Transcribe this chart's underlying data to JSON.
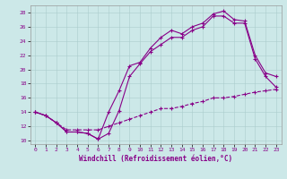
{
  "xlabel": "Windchill (Refroidissement éolien,°C)",
  "background_color": "#cce8e8",
  "line_color": "#880088",
  "xlim": [
    -0.5,
    23.5
  ],
  "ylim": [
    9.5,
    29.0
  ],
  "yticks": [
    10,
    12,
    14,
    16,
    18,
    20,
    22,
    24,
    26,
    28
  ],
  "xticks": [
    0,
    1,
    2,
    3,
    4,
    5,
    6,
    7,
    8,
    9,
    10,
    11,
    12,
    13,
    14,
    15,
    16,
    17,
    18,
    19,
    20,
    21,
    22,
    23
  ],
  "curve1_x": [
    0,
    1,
    2,
    3,
    4,
    5,
    6,
    7,
    8,
    9,
    10,
    11,
    12,
    13,
    14,
    15,
    16,
    17,
    18,
    19,
    20,
    21,
    22,
    23
  ],
  "curve1_y": [
    14.0,
    13.5,
    12.5,
    11.2,
    11.2,
    11.0,
    10.2,
    14.0,
    17.0,
    20.5,
    21.0,
    23.0,
    24.5,
    25.5,
    25.0,
    26.0,
    26.5,
    27.8,
    28.2,
    27.0,
    26.8,
    22.0,
    19.5,
    19.0
  ],
  "curve2_x": [
    0,
    1,
    2,
    3,
    4,
    5,
    6,
    7,
    8,
    9,
    10,
    11,
    12,
    13,
    14,
    15,
    16,
    17,
    18,
    19,
    20,
    21,
    22,
    23
  ],
  "curve2_y": [
    14.0,
    13.5,
    12.5,
    11.2,
    11.2,
    11.0,
    10.2,
    11.0,
    14.2,
    19.0,
    20.8,
    22.5,
    23.5,
    24.5,
    24.5,
    25.5,
    26.0,
    27.5,
    27.5,
    26.5,
    26.5,
    21.5,
    19.0,
    17.5
  ],
  "curve3_x": [
    0,
    1,
    2,
    3,
    4,
    5,
    6,
    7,
    8,
    9,
    10,
    11,
    12,
    13,
    14,
    15,
    16,
    17,
    18,
    19,
    20,
    21,
    22,
    23
  ],
  "curve3_y": [
    14.0,
    13.5,
    12.5,
    11.5,
    11.5,
    11.5,
    11.5,
    12.0,
    12.5,
    13.0,
    13.5,
    14.0,
    14.5,
    14.5,
    14.8,
    15.2,
    15.5,
    16.0,
    16.0,
    16.2,
    16.5,
    16.8,
    17.0,
    17.2
  ]
}
